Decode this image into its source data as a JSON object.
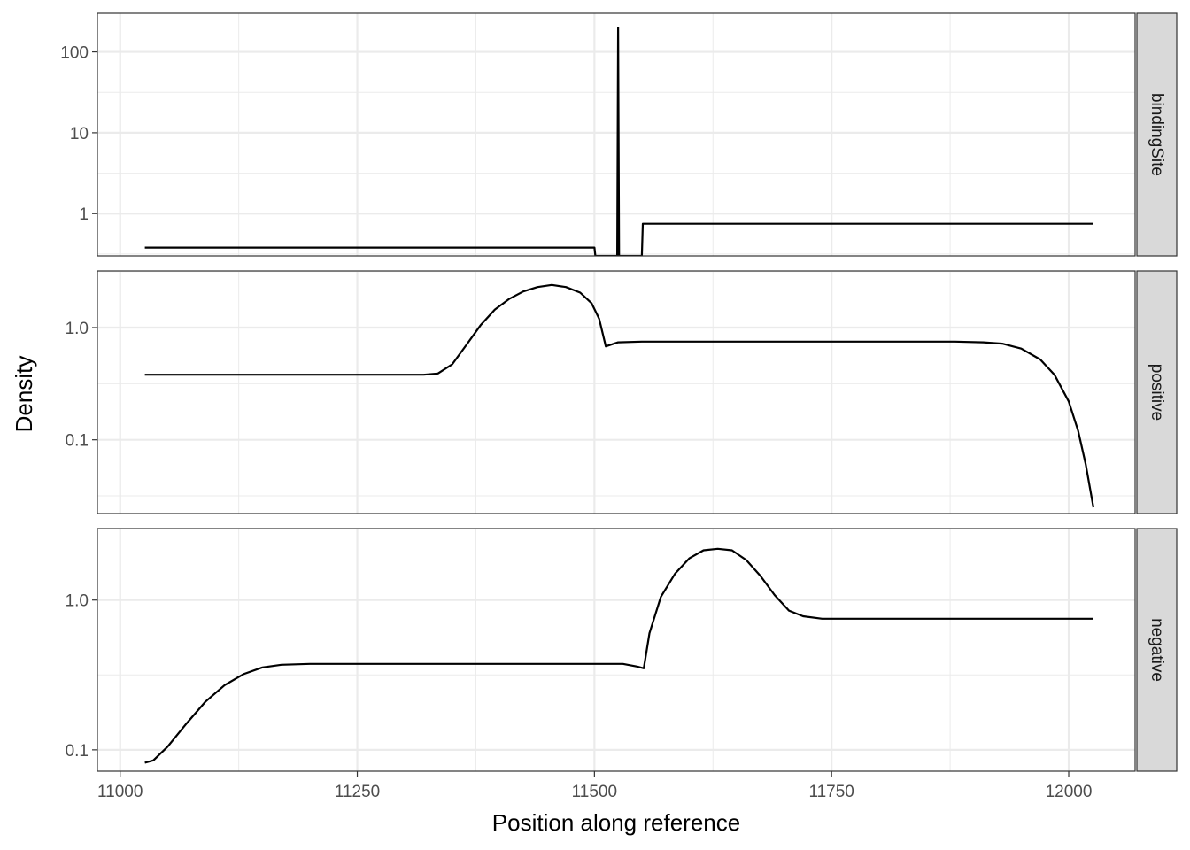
{
  "chart_data": {
    "type": "line",
    "xlabel": "Position along reference",
    "ylabel": "Density",
    "x_ticks": [
      11000,
      11250,
      11500,
      11750,
      12000
    ],
    "xlim": [
      10976,
      12070
    ],
    "y_scale": "log",
    "grid": true,
    "line_color": "#000000",
    "panels": [
      {
        "strip": "bindingSite",
        "ylim": [
          0.3,
          300
        ],
        "y_ticks": [
          1,
          10,
          100
        ],
        "y_tick_labels": [
          "1",
          "10",
          "100"
        ],
        "points": [
          [
            11026,
            0.38
          ],
          [
            11500,
            0.38
          ],
          [
            11501,
            0.3
          ],
          [
            11524,
            0.3
          ],
          [
            11525,
            200
          ],
          [
            11526,
            0.3
          ],
          [
            11550,
            0.3
          ],
          [
            11551,
            0.75
          ],
          [
            12026,
            0.75
          ]
        ]
      },
      {
        "strip": "positive",
        "ylim": [
          0.022,
          3.2
        ],
        "y_ticks": [
          0.1,
          1.0
        ],
        "y_tick_labels": [
          "0.1",
          "1.0"
        ],
        "points": [
          [
            11026,
            0.38
          ],
          [
            11100,
            0.38
          ],
          [
            11200,
            0.38
          ],
          [
            11300,
            0.38
          ],
          [
            11320,
            0.38
          ],
          [
            11335,
            0.39
          ],
          [
            11350,
            0.47
          ],
          [
            11365,
            0.7
          ],
          [
            11380,
            1.05
          ],
          [
            11395,
            1.45
          ],
          [
            11410,
            1.8
          ],
          [
            11425,
            2.1
          ],
          [
            11440,
            2.3
          ],
          [
            11455,
            2.4
          ],
          [
            11470,
            2.3
          ],
          [
            11485,
            2.05
          ],
          [
            11497,
            1.65
          ],
          [
            11505,
            1.2
          ],
          [
            11512,
            0.68
          ],
          [
            11525,
            0.74
          ],
          [
            11550,
            0.75
          ],
          [
            11700,
            0.75
          ],
          [
            11850,
            0.75
          ],
          [
            11880,
            0.75
          ],
          [
            11910,
            0.74
          ],
          [
            11930,
            0.72
          ],
          [
            11950,
            0.65
          ],
          [
            11970,
            0.52
          ],
          [
            11985,
            0.38
          ],
          [
            12000,
            0.22
          ],
          [
            12010,
            0.12
          ],
          [
            12018,
            0.06
          ],
          [
            12026,
            0.025
          ]
        ]
      },
      {
        "strip": "negative",
        "ylim": [
          0.072,
          3.0
        ],
        "y_ticks": [
          0.1,
          1.0
        ],
        "y_tick_labels": [
          "0.1",
          "1.0"
        ],
        "points": [
          [
            11026,
            0.082
          ],
          [
            11035,
            0.085
          ],
          [
            11050,
            0.105
          ],
          [
            11070,
            0.15
          ],
          [
            11090,
            0.21
          ],
          [
            11110,
            0.27
          ],
          [
            11130,
            0.32
          ],
          [
            11150,
            0.355
          ],
          [
            11170,
            0.37
          ],
          [
            11200,
            0.375
          ],
          [
            11300,
            0.375
          ],
          [
            11400,
            0.375
          ],
          [
            11500,
            0.375
          ],
          [
            11530,
            0.375
          ],
          [
            11545,
            0.36
          ],
          [
            11552,
            0.35
          ],
          [
            11558,
            0.6
          ],
          [
            11570,
            1.05
          ],
          [
            11585,
            1.5
          ],
          [
            11600,
            1.9
          ],
          [
            11615,
            2.15
          ],
          [
            11630,
            2.2
          ],
          [
            11645,
            2.15
          ],
          [
            11660,
            1.85
          ],
          [
            11675,
            1.45
          ],
          [
            11690,
            1.08
          ],
          [
            11705,
            0.85
          ],
          [
            11720,
            0.78
          ],
          [
            11740,
            0.75
          ],
          [
            11800,
            0.75
          ],
          [
            11900,
            0.75
          ],
          [
            12026,
            0.75
          ]
        ]
      }
    ]
  }
}
